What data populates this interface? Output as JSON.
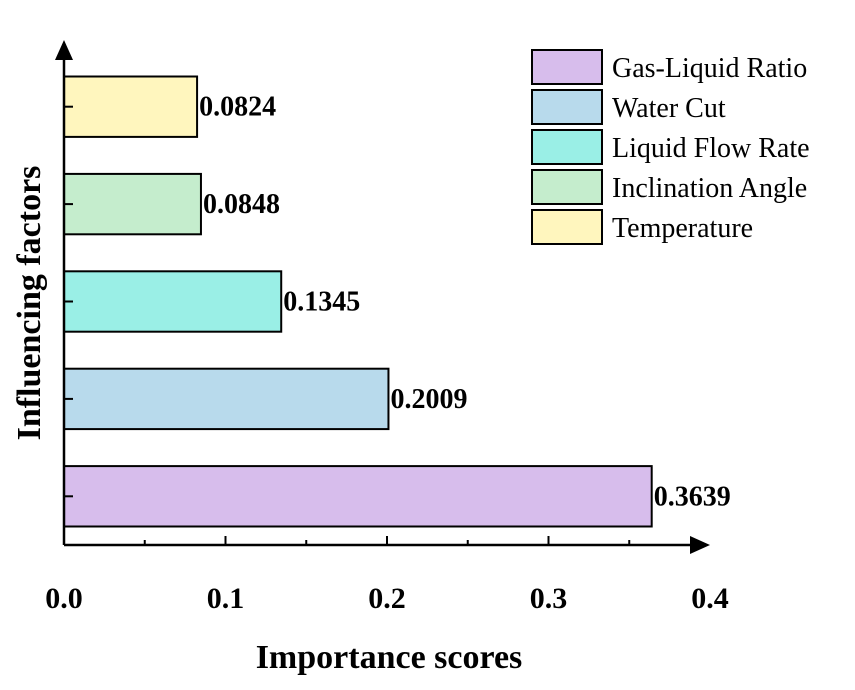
{
  "chart_data": {
    "type": "bar",
    "orientation": "horizontal",
    "xlabel": "Importance scores",
    "ylabel": "Influencing factors",
    "xlim": [
      0,
      0.4
    ],
    "xticks": [
      "0.0",
      "0.1",
      "0.2",
      "0.3",
      "0.4"
    ],
    "grid": false,
    "legend_position": "top-right",
    "categories": [
      "Gas-Liquid Ratio",
      "Water Cut",
      "Liquid Flow Rate",
      "Inclination Angle",
      "Temperature"
    ],
    "values": [
      0.3639,
      0.2009,
      0.1345,
      0.0848,
      0.0824
    ],
    "data_labels": [
      "0.3639",
      "0.2009",
      "0.1345",
      "0.0848",
      "0.0824"
    ],
    "colors": [
      "#D7BDEC",
      "#B8DAEC",
      "#9AEFE6",
      "#C5EDCD",
      "#FFF6BE"
    ]
  }
}
